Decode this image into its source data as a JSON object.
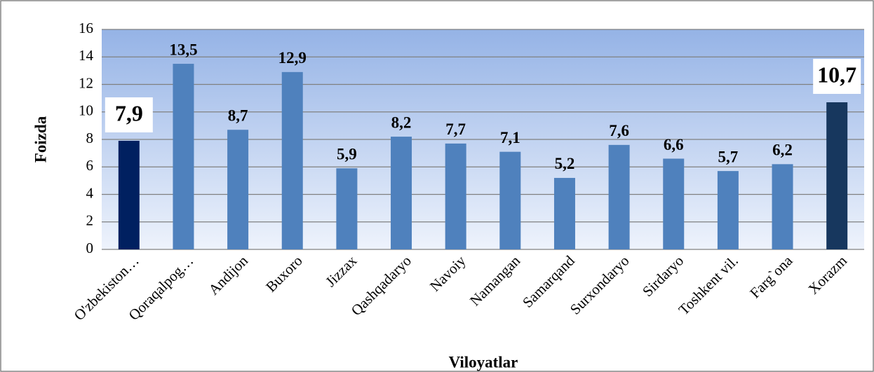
{
  "chart_data": {
    "type": "bar",
    "categories": [
      "O'zbekiston…",
      "Qoraqalpog…",
      "Andijon",
      "Buxoro",
      "Jizzax",
      "Qashqadaryo",
      "Navoiy",
      "Namangan",
      "Samarqand",
      "Surxondaryo",
      "Sirdaryo",
      "Toshkent vil.",
      "Farg`ona",
      "Xorazm"
    ],
    "values": [
      7.9,
      13.5,
      8.7,
      12.9,
      5.9,
      8.2,
      7.7,
      7.1,
      5.2,
      7.6,
      6.6,
      5.7,
      6.2,
      10.7
    ],
    "value_labels": [
      "7,9",
      "13,5",
      "8,7",
      "12,9",
      "5,9",
      "8,2",
      "7,7",
      "7,1",
      "5,2",
      "7,6",
      "6,6",
      "5,7",
      "6,2",
      "10,7"
    ],
    "color": "#4f81bd",
    "colors": [
      "#002060",
      "#4f81bd",
      "#4f81bd",
      "#4f81bd",
      "#4f81bd",
      "#4f81bd",
      "#4f81bd",
      "#4f81bd",
      "#4f81bd",
      "#4f81bd",
      "#4f81bd",
      "#4f81bd",
      "#4f81bd",
      "#17375e"
    ],
    "xlabel": "Viloyatlar",
    "ylabel": "Foizda",
    "ylim": [
      0,
      16
    ],
    "yticks": [
      0,
      2,
      4,
      6,
      8,
      10,
      12,
      14,
      16
    ],
    "grid": true
  }
}
